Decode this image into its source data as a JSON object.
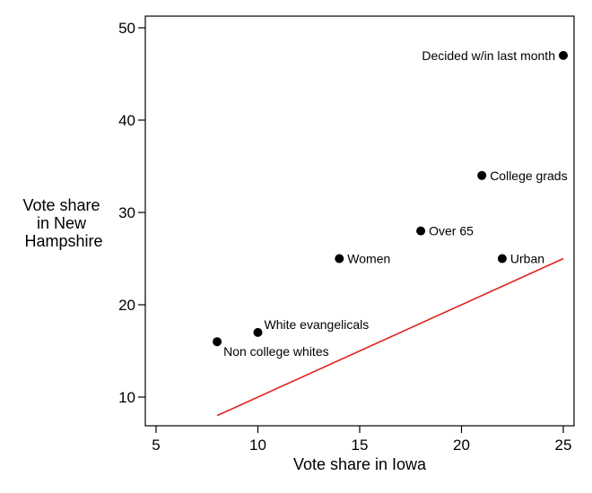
{
  "chart_data": {
    "type": "scatter",
    "title": "",
    "xlabel": "Vote share in Iowa",
    "ylabel_lines": [
      "Vote share",
      "in New",
      "Hampshire"
    ],
    "xlim": [
      5,
      25
    ],
    "ylim": [
      8,
      51
    ],
    "xticks": [
      5,
      10,
      15,
      20,
      25
    ],
    "yticks": [
      10,
      20,
      30,
      40,
      50
    ],
    "grid": false,
    "points": [
      {
        "label": "Non college whites",
        "x": 8,
        "y": 16,
        "label_pos": "below-right"
      },
      {
        "label": "White evangelicals",
        "x": 10,
        "y": 17,
        "label_pos": "above-right"
      },
      {
        "label": "Women",
        "x": 14,
        "y": 25,
        "label_pos": "right"
      },
      {
        "label": "Over 65",
        "x": 18,
        "y": 28,
        "label_pos": "right"
      },
      {
        "label": "Urban",
        "x": 22,
        "y": 25,
        "label_pos": "right"
      },
      {
        "label": "College grads",
        "x": 21,
        "y": 34,
        "label_pos": "right"
      },
      {
        "label": "Decided w/in last month",
        "x": 25,
        "y": 47,
        "label_pos": "left"
      }
    ],
    "reference_line": {
      "name": "y = x",
      "x": [
        8,
        25
      ],
      "y": [
        8,
        25
      ],
      "color": "#e0231c"
    },
    "point_color": "#000000"
  }
}
